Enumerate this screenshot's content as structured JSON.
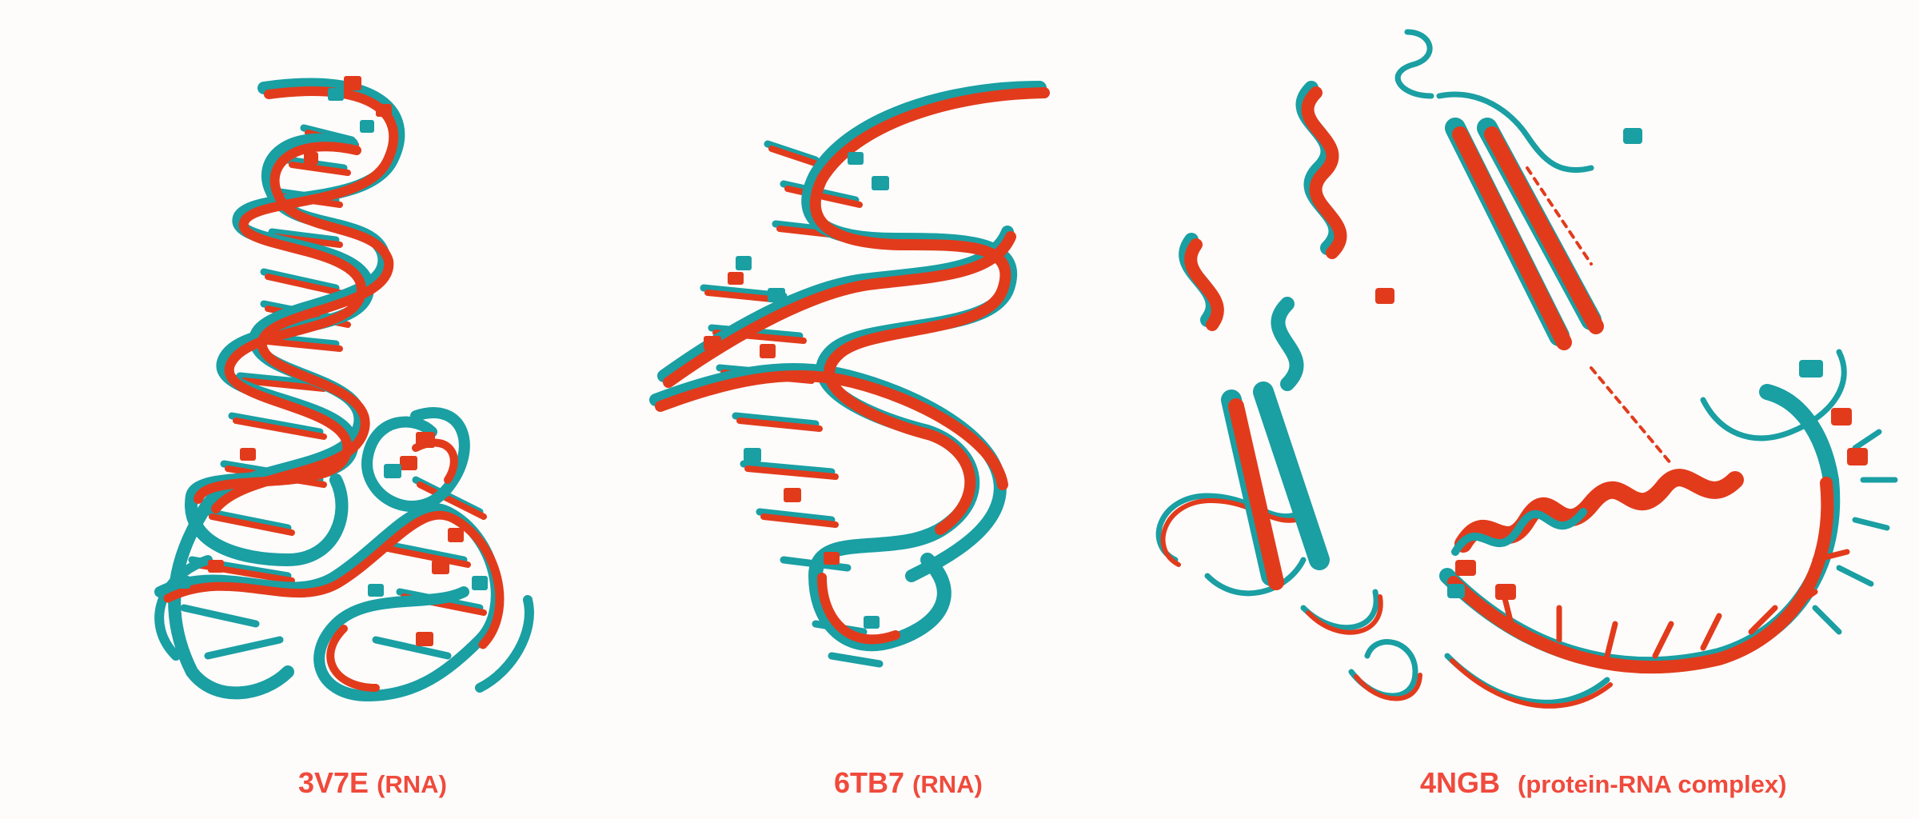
{
  "structures": [
    {
      "code": "3V7E",
      "kind": "(RNA)"
    },
    {
      "code": "6TB7",
      "kind": "(RNA)"
    },
    {
      "code": "4NGB",
      "kind": "(protein-RNA complex)"
    }
  ],
  "colors": {
    "background": "#fdfcfb",
    "reference_model": "#1a9fa3",
    "predicted_model": "#e23b1c",
    "caption_text": "#f04a3c"
  },
  "icons": {
    "structure_1": "rna-ribbon-3v7e",
    "structure_2": "rna-ribbon-6tb7",
    "structure_3": "protein-rna-complex-ribbon-4ngb"
  }
}
